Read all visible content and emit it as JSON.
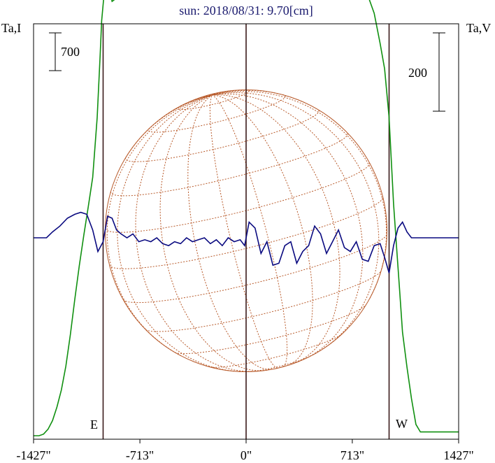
{
  "chart_data": {
    "type": "line",
    "title": "sun: 2018/08/31: 9.70[cm]",
    "left_axis_label": "Ta,I",
    "right_axis_label": "Ta,V",
    "left_scale_label": "700",
    "right_scale_label": "200",
    "xlim": [
      -1427,
      1427
    ],
    "x_ticks": [
      {
        "value": -1427,
        "label": "-1427\""
      },
      {
        "value": -713,
        "label": "-713\""
      },
      {
        "value": 0,
        "label": "0\""
      },
      {
        "value": 713,
        "label": "713\""
      },
      {
        "value": 1427,
        "label": "1427\""
      }
    ],
    "limb_labels": {
      "east": "E",
      "west": "W"
    },
    "limb_positions": [
      -960,
      0,
      960
    ],
    "solar_disk_radius": 946,
    "grid": false,
    "colors": {
      "intensity": "#109010",
      "polarization": "#0a0a80",
      "disk": "#b85a2a",
      "limb_lines": "#3a1a1a",
      "title": "#1a1a6e",
      "text": "#000000"
    },
    "series": [
      {
        "name": "I",
        "x": [
          -1427,
          -1390,
          -1360,
          -1330,
          -1300,
          -1270,
          -1240,
          -1210,
          -1180,
          -1150,
          -1120,
          -1090,
          -1060,
          -1030,
          -1000,
          -980,
          -970,
          -955,
          -940,
          -920,
          -900,
          -880,
          -860,
          -830,
          -800,
          -760,
          -720,
          -680,
          -640,
          -600,
          -560,
          -520,
          -480,
          -440,
          -400,
          -370,
          -340,
          -310,
          -280,
          -240,
          -200,
          -160,
          -120,
          -80,
          -40,
          0,
          40,
          80,
          110,
          150,
          180,
          220,
          250,
          270,
          300,
          340,
          380,
          420,
          460,
          500,
          540,
          580,
          620,
          660,
          700,
          740,
          780,
          820,
          860,
          900,
          930,
          960,
          990,
          1010,
          1030,
          1050,
          1080,
          1110,
          1140,
          1170,
          1200,
          1230,
          1260,
          1290,
          1320,
          1360,
          1427
        ],
        "values": [
          0,
          0,
          30,
          120,
          280,
          530,
          850,
          1290,
          1870,
          2530,
          3150,
          3710,
          4240,
          4790,
          5900,
          7040,
          7690,
          8150,
          8410,
          8300,
          8050,
          8090,
          8480,
          8830,
          9050,
          9320,
          9540,
          9660,
          9880,
          9910,
          10000,
          10090,
          10200,
          10310,
          10400,
          10430,
          10440,
          10440,
          10360,
          10350,
          10430,
          10450,
          10560,
          10530,
          10400,
          10430,
          10530,
          10640,
          10400,
          10450,
          10270,
          10410,
          10160,
          10180,
          10090,
          9950,
          9880,
          9660,
          9600,
          9420,
          9370,
          9190,
          9090,
          8990,
          8830,
          8600,
          8370,
          8140,
          7830,
          7270,
          6800,
          5900,
          4300,
          3500,
          2730,
          1920,
          1270,
          690,
          210,
          70,
          70,
          70,
          70,
          70,
          70,
          70,
          70
        ]
      },
      {
        "name": "V",
        "x": [
          -1427,
          -1340,
          -1300,
          -1250,
          -1200,
          -1150,
          -1110,
          -1070,
          -1030,
          -995,
          -960,
          -930,
          -900,
          -870,
          -840,
          -800,
          -760,
          -720,
          -680,
          -640,
          -600,
          -560,
          -520,
          -480,
          -440,
          -400,
          -360,
          -320,
          -280,
          -240,
          -200,
          -160,
          -120,
          -80,
          -40,
          -10,
          20,
          60,
          100,
          140,
          180,
          220,
          260,
          300,
          340,
          380,
          420,
          460,
          500,
          540,
          580,
          620,
          660,
          700,
          740,
          780,
          820,
          860,
          900,
          930,
          960,
          990,
          1020,
          1050,
          1080,
          1110,
          1427
        ],
        "values": [
          0,
          0,
          15,
          30,
          50,
          60,
          65,
          60,
          20,
          -35,
          -10,
          55,
          50,
          20,
          10,
          0,
          10,
          -10,
          -5,
          -10,
          0,
          -15,
          -20,
          -10,
          -15,
          0,
          -10,
          -5,
          0,
          -15,
          -5,
          -20,
          0,
          -10,
          -5,
          -20,
          40,
          25,
          -40,
          -10,
          -70,
          -65,
          -20,
          -10,
          -65,
          -35,
          -20,
          30,
          10,
          -40,
          -10,
          20,
          -25,
          -35,
          -10,
          -55,
          -60,
          -20,
          -15,
          -50,
          -90,
          -20,
          25,
          40,
          15,
          0,
          0
        ]
      }
    ]
  }
}
